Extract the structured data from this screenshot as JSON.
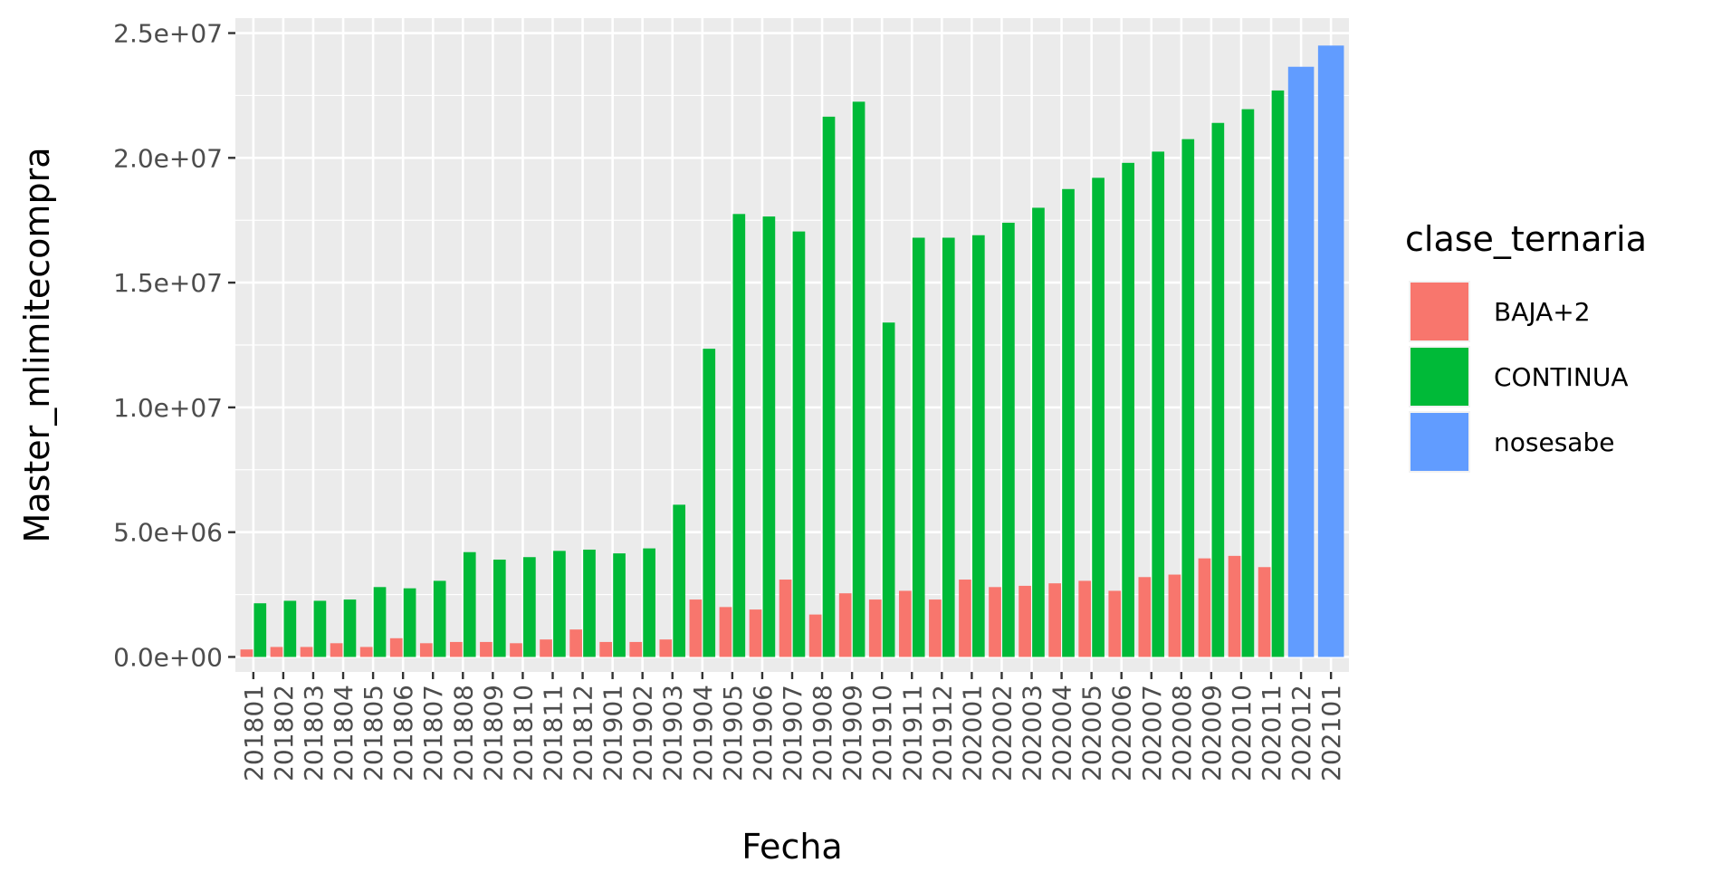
{
  "chart_data": {
    "type": "bar",
    "xlabel": "Fecha",
    "ylabel": "Master_mlimitecompra",
    "ylim": [
      -600000,
      25600000
    ],
    "y_ticks": [
      0,
      5000000,
      10000000,
      15000000,
      20000000,
      25000000
    ],
    "y_tick_labels": [
      "0.0e+00",
      "5.0e+06",
      "1.0e+07",
      "1.5e+07",
      "2.0e+07",
      "2.5e+07"
    ],
    "grid": true,
    "legend": {
      "title": "clase_ternaria",
      "position": "right"
    },
    "categories": [
      "201801",
      "201802",
      "201803",
      "201804",
      "201805",
      "201806",
      "201807",
      "201808",
      "201809",
      "201810",
      "201811",
      "201812",
      "201901",
      "201902",
      "201903",
      "201904",
      "201905",
      "201906",
      "201907",
      "201908",
      "201909",
      "201910",
      "201911",
      "201912",
      "202001",
      "202002",
      "202003",
      "202004",
      "202005",
      "202006",
      "202007",
      "202008",
      "202009",
      "202010",
      "202011",
      "202012",
      "202101"
    ],
    "series": [
      {
        "name": "BAJA+2",
        "color": "#F8766D",
        "values": [
          300000,
          400000,
          400000,
          550000,
          400000,
          750000,
          550000,
          600000,
          600000,
          550000,
          700000,
          1100000,
          600000,
          600000,
          700000,
          2300000,
          2000000,
          1900000,
          3100000,
          1700000,
          2550000,
          2300000,
          2650000,
          2300000,
          3100000,
          2800000,
          2850000,
          2950000,
          3050000,
          2650000,
          3200000,
          3300000,
          3950000,
          4050000,
          3600000,
          null,
          null
        ]
      },
      {
        "name": "CONTINUA",
        "color": "#00BA38",
        "values": [
          2150000,
          2250000,
          2250000,
          2300000,
          2800000,
          2750000,
          3050000,
          4200000,
          3900000,
          4000000,
          4250000,
          4300000,
          4150000,
          4350000,
          6100000,
          12350000,
          17750000,
          17650000,
          17050000,
          21650000,
          22250000,
          13400000,
          16800000,
          16800000,
          16900000,
          17400000,
          18000000,
          18750000,
          19200000,
          19800000,
          20250000,
          20750000,
          21400000,
          21950000,
          22700000,
          null,
          null
        ]
      },
      {
        "name": "nosesabe",
        "color": "#619CFF",
        "values": [
          null,
          null,
          null,
          null,
          null,
          null,
          null,
          null,
          null,
          null,
          null,
          null,
          null,
          null,
          null,
          null,
          null,
          null,
          null,
          null,
          null,
          null,
          null,
          null,
          null,
          null,
          null,
          null,
          null,
          null,
          null,
          null,
          null,
          null,
          null,
          23650000,
          24500000
        ]
      }
    ]
  }
}
